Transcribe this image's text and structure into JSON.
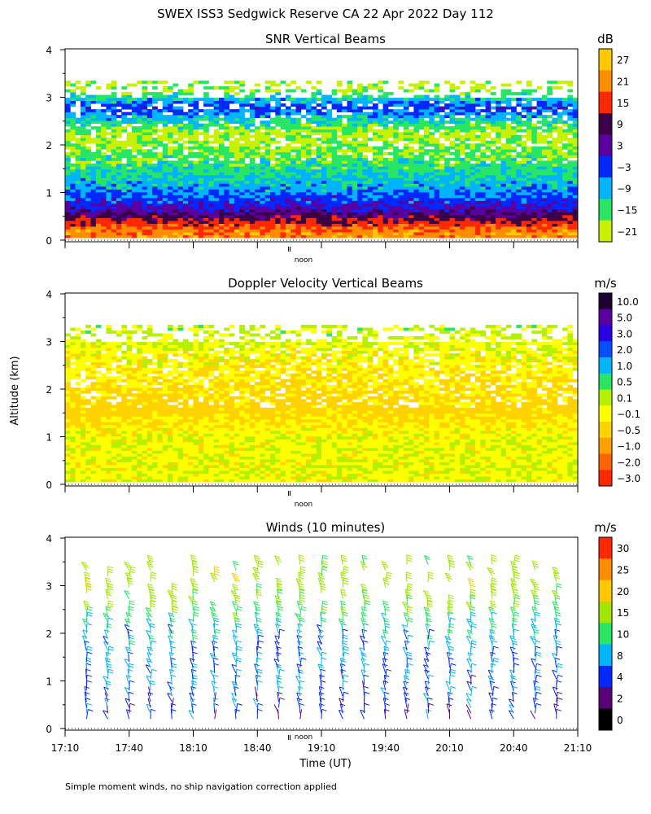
{
  "title": "SWEX ISS3 Sedgwick Reserve CA  22 Apr 2022 Day 112",
  "y_axis_label": "Altitude (km)",
  "x_axis_label": "Time (UT)",
  "footnote": "Simple moment winds, no ship navigation correction applied",
  "noon_label": "noon",
  "chart_data": [
    {
      "type": "heatmap",
      "title": "SNR Vertical Beams",
      "ylabel": "Altitude (km)",
      "ylim": [
        0,
        4
      ],
      "yticks": [
        "0",
        "1",
        "2",
        "3",
        "4"
      ],
      "xlim": [
        "17:10",
        "21:10"
      ],
      "colorbar_unit": "dB",
      "colorbar_labels": [
        "27",
        "21",
        "15",
        "9",
        "3",
        "−3",
        "−9",
        "−15",
        "−21"
      ],
      "colorbar_colors": [
        "#ffc800",
        "#ff8c00",
        "#ff2800",
        "#3c0046",
        "#5a00a0",
        "#0028ff",
        "#00b4ff",
        "#28e664",
        "#c8f000"
      ],
      "profile": [
        {
          "alt": 0.15,
          "value": 21
        },
        {
          "alt": 0.3,
          "value": 15
        },
        {
          "alt": 0.45,
          "value": 9
        },
        {
          "alt": 0.6,
          "value": 3
        },
        {
          "alt": 0.8,
          "value": -3
        },
        {
          "alt": 1.1,
          "value": -9
        },
        {
          "alt": 1.6,
          "value": -15
        },
        {
          "alt": 2.2,
          "value": -21
        },
        {
          "alt": 2.75,
          "value": -3
        },
        {
          "alt": 3.2,
          "value": -21
        }
      ]
    },
    {
      "type": "heatmap",
      "title": "Doppler Velocity Vertical Beams",
      "ylabel": "Altitude (km)",
      "ylim": [
        0,
        4
      ],
      "yticks": [
        "0",
        "1",
        "2",
        "3",
        "4"
      ],
      "xlim": [
        "17:10",
        "21:10"
      ],
      "colorbar_unit": "m/s",
      "colorbar_labels": [
        "10.0",
        "5.0",
        "3.0",
        "2.0",
        "1.0",
        "0.5",
        "0.1",
        "−0.1",
        "−0.5",
        "−1.0",
        "−2.0",
        "−3.0"
      ],
      "colorbar_colors": [
        "#1e0032",
        "#5a00a0",
        "#2800e6",
        "#0050ff",
        "#00b4ff",
        "#28e664",
        "#b4f000",
        "#ffff00",
        "#ffd200",
        "#ffa000",
        "#ff6400",
        "#ff2800"
      ],
      "profile": [
        {
          "alt": 0.3,
          "value": -0.1
        },
        {
          "alt": 1.0,
          "value": -0.1
        },
        {
          "alt": 1.5,
          "value": -0.5
        },
        {
          "alt": 2.8,
          "value": -0.1
        },
        {
          "alt": 3.2,
          "value": 0.1
        }
      ]
    },
    {
      "type": "scatter",
      "title": "Winds (10 minutes)",
      "ylabel": "Altitude (km)",
      "ylim": [
        0,
        4
      ],
      "yticks": [
        "0",
        "1",
        "2",
        "3",
        "4"
      ],
      "xlim": [
        "17:10",
        "21:10"
      ],
      "xticks": [
        "17:10",
        "17:40",
        "18:10",
        "18:40",
        "19:10",
        "19:40",
        "20:10",
        "20:40",
        "21:10"
      ],
      "colorbar_unit": "m/s",
      "colorbar_labels": [
        "30",
        "25",
        "20",
        "15",
        "10",
        "8",
        "4",
        "2",
        "0"
      ],
      "colorbar_colors": [
        "#ff2800",
        "#ff8c00",
        "#ffc800",
        "#a0e600",
        "#28e664",
        "#00b4ff",
        "#0028ff",
        "#5a0078",
        "#000000"
      ],
      "times": [
        "17:20",
        "17:30",
        "17:40",
        "17:50",
        "18:00",
        "18:10",
        "18:20",
        "18:30",
        "18:40",
        "18:50",
        "19:00",
        "19:10",
        "19:20",
        "19:30",
        "19:40",
        "19:50",
        "20:00",
        "20:10",
        "20:20",
        "20:30",
        "20:40",
        "20:50",
        "21:00"
      ],
      "profile": [
        {
          "alt": 0.5,
          "speed": 4
        },
        {
          "alt": 1.0,
          "speed": 6
        },
        {
          "alt": 1.5,
          "speed": 6
        },
        {
          "alt": 2.0,
          "speed": 8
        },
        {
          "alt": 2.5,
          "speed": 12
        },
        {
          "alt": 3.0,
          "speed": 16
        },
        {
          "alt": 3.4,
          "speed": 14
        }
      ]
    }
  ]
}
